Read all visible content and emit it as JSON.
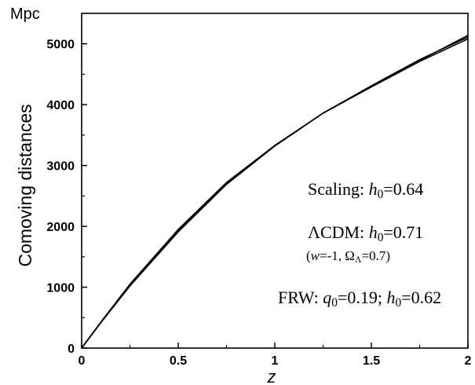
{
  "chart_data": {
    "type": "line",
    "unit_label": "Mpc",
    "xlabel": "z",
    "ylabel": "Comoving distances",
    "xlim": [
      0,
      2
    ],
    "ylim": [
      0,
      5500
    ],
    "xticks": [
      0,
      0.5,
      1,
      1.5,
      2
    ],
    "xtick_labels": [
      "0",
      "0.5",
      "1",
      "1.5",
      "2"
    ],
    "yticks": [
      0,
      1000,
      2000,
      3000,
      4000,
      5000
    ],
    "ytick_labels": [
      "0",
      "1000",
      "2000",
      "3000",
      "4000",
      "5000"
    ],
    "grid": false,
    "series": [
      {
        "x": [
          0,
          0.1,
          0.25,
          0.5,
          0.75,
          1.0,
          1.25,
          1.5,
          1.75,
          2.0
        ],
        "y": [
          0,
          430,
          1050,
          1950,
          2720,
          3330,
          3860,
          4290,
          4710,
          5080
        ]
      },
      {
        "x": [
          0,
          0.1,
          0.25,
          0.5,
          0.75,
          1.0,
          1.25,
          1.5,
          1.75,
          2.0
        ],
        "y": [
          0,
          420,
          1020,
          1910,
          2690,
          3320,
          3860,
          4310,
          4740,
          5110
        ]
      },
      {
        "x": [
          0,
          0.1,
          0.25,
          0.5,
          0.75,
          1.0,
          1.25,
          1.5,
          1.75,
          2.0
        ],
        "y": [
          0,
          425,
          1035,
          1930,
          2705,
          3325,
          3860,
          4300,
          4725,
          5140
        ]
      }
    ],
    "annotations": {
      "scaling": {
        "label": "Scaling: ",
        "param": "h",
        "sub": "0",
        "value": "=0.64"
      },
      "lcdm": {
        "label": "ΛCDM: ",
        "param": "h",
        "sub": "0",
        "value": "=0.71"
      },
      "lcdm_note": {
        "w_sym": "w",
        "w_val": "=-1, Ω",
        "omega_sub": "Λ",
        "omega_val": "=0.7"
      },
      "frw": {
        "label": "FRW: ",
        "q_sym": "q",
        "q_sub": "0",
        "q_val": "=0.19; ",
        "h_sym": "h",
        "h_sub": "0",
        "h_val": "=0.62"
      }
    }
  }
}
